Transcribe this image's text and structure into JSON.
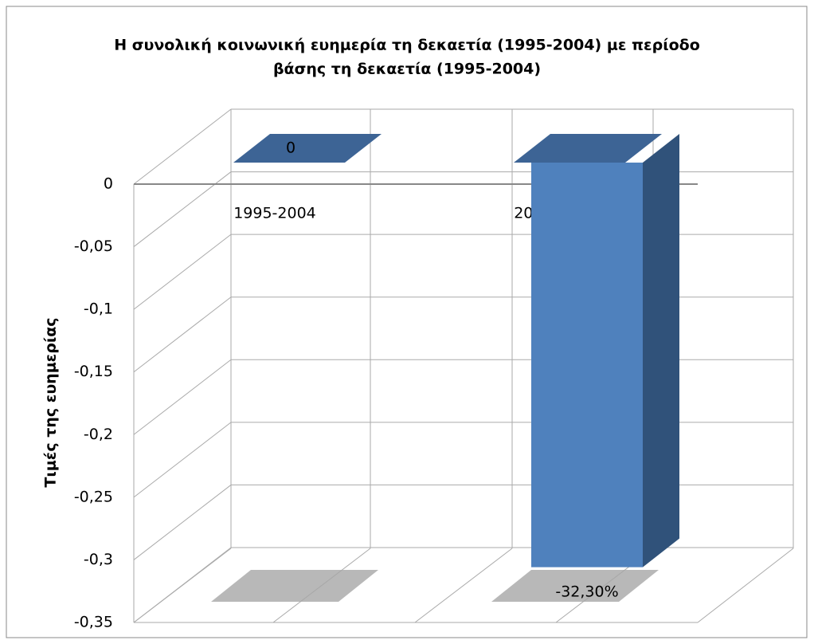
{
  "chart_data": {
    "type": "bar3d",
    "title": "Η συνολική κοινωνική ευημερία τη δεκαετία (1995-2004) με περίοδο βάσης τη δεκαετία (1995-2004)",
    "title_lines": [
      "Η συνολική κοινωνική ευημερία τη δεκαετία (1995-2004) με περίοδο",
      "βάσης τη δεκαετία (1995-2004)"
    ],
    "y_label": "Τιμές της ευημερίας",
    "categories": [
      "1995-2004",
      "2005-2014"
    ],
    "values": [
      0,
      -0.323
    ],
    "value_labels": [
      "0",
      "-32,30%"
    ],
    "color": "#4f81bd",
    "ylim": [
      0,
      -0.35
    ],
    "yticks": [
      0,
      {
        "value": -0.05,
        "label": "-0,05"
      },
      {
        "value": -0.1,
        "label": "-0,1"
      },
      {
        "value": -0.15,
        "label": "-0,15"
      },
      {
        "value": -0.2,
        "label": "-0,2"
      },
      {
        "value": -0.25,
        "label": "-0,25"
      },
      {
        "value": -0.3,
        "label": "-0,3"
      },
      {
        "value": -0.35,
        "label": "-0,35"
      }
    ],
    "grid": true
  }
}
